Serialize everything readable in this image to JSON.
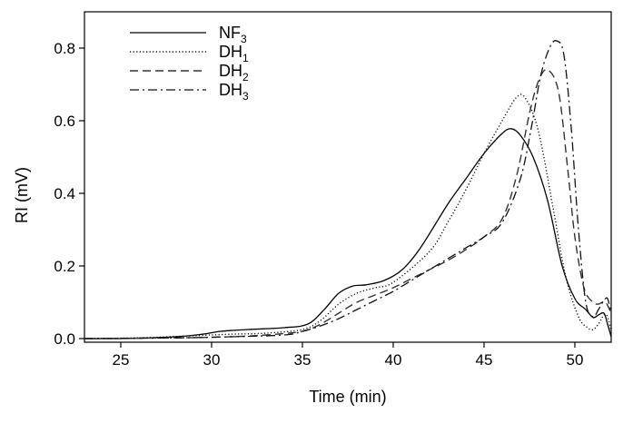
{
  "chart_data": {
    "type": "line",
    "xlabel": "Time (min)",
    "ylabel": "RI (mV)",
    "xlim": [
      23,
      52
    ],
    "ylim": [
      -0.01,
      0.9
    ],
    "xticks": [
      25,
      30,
      35,
      40,
      45,
      50
    ],
    "yticks": [
      0.0,
      0.2,
      0.4,
      0.6,
      0.8
    ],
    "xtick_labels": [
      "25",
      "30",
      "35",
      "40",
      "45",
      "50"
    ],
    "ytick_labels": [
      "0.0",
      "0.2",
      "0.4",
      "0.6",
      "0.8"
    ],
    "grid": false,
    "legend_position": "top-left",
    "series": [
      {
        "label_main": "NF",
        "label_sub": "3",
        "style": "solid",
        "x": [
          23,
          25,
          28,
          29.5,
          30.5,
          32,
          34,
          35.3,
          36.2,
          37,
          37.8,
          38.5,
          39.5,
          40.5,
          41.5,
          43,
          44,
          45,
          46,
          46.5,
          47,
          47.7,
          48.5,
          49.3,
          50,
          50.6,
          51,
          51.3,
          51.6,
          51.8,
          52
        ],
        "y": [
          0.0,
          0.0,
          0.005,
          0.012,
          0.02,
          0.025,
          0.03,
          0.04,
          0.08,
          0.125,
          0.145,
          0.148,
          0.16,
          0.19,
          0.25,
          0.37,
          0.44,
          0.51,
          0.565,
          0.578,
          0.56,
          0.5,
          0.38,
          0.2,
          0.11,
          0.08,
          0.058,
          0.065,
          0.07,
          0.04,
          0.005
        ]
      },
      {
        "label_main": "DH",
        "label_sub": "1",
        "style": "dotted",
        "x": [
          23,
          26,
          29,
          31,
          33,
          35,
          36,
          37,
          38,
          39,
          40,
          42,
          43,
          44,
          45,
          46,
          46.8,
          47.3,
          48,
          48.8,
          49.5,
          50.2,
          50.7,
          51,
          51.3,
          51.6,
          51.8,
          52
        ],
        "y": [
          0.0,
          0.002,
          0.008,
          0.012,
          0.015,
          0.025,
          0.05,
          0.095,
          0.125,
          0.14,
          0.155,
          0.24,
          0.32,
          0.41,
          0.51,
          0.6,
          0.665,
          0.66,
          0.57,
          0.36,
          0.17,
          0.06,
          0.03,
          0.025,
          0.04,
          0.065,
          0.06,
          0.02
        ]
      },
      {
        "label_main": "DH",
        "label_sub": "2",
        "style": "dashed",
        "x": [
          23,
          28,
          31,
          33,
          35,
          36,
          37,
          38,
          39,
          40,
          41,
          42,
          43,
          44,
          45,
          46,
          46.8,
          47.5,
          48,
          48.5,
          49.1,
          49.6,
          50,
          50.5,
          51,
          51.3,
          51.5,
          51.7,
          52
        ],
        "y": [
          0.0,
          0.002,
          0.005,
          0.01,
          0.02,
          0.04,
          0.07,
          0.1,
          0.12,
          0.14,
          0.165,
          0.19,
          0.215,
          0.245,
          0.28,
          0.33,
          0.45,
          0.62,
          0.71,
          0.74,
          0.68,
          0.47,
          0.28,
          0.14,
          0.1,
          0.095,
          0.1,
          0.1,
          0.07
        ]
      },
      {
        "label_main": "DH",
        "label_sub": "3",
        "style": "dashdot",
        "x": [
          23,
          28,
          31,
          34,
          35,
          36,
          37,
          38,
          39,
          40,
          41,
          42,
          43,
          44,
          45,
          46,
          47,
          47.6,
          48.1,
          48.6,
          49,
          49.4,
          49.8,
          50.2,
          50.6,
          51,
          51.3,
          51.6,
          51.8,
          52
        ],
        "y": [
          0.0,
          0.002,
          0.005,
          0.01,
          0.02,
          0.035,
          0.055,
          0.08,
          0.105,
          0.13,
          0.16,
          0.19,
          0.22,
          0.25,
          0.28,
          0.32,
          0.44,
          0.58,
          0.72,
          0.8,
          0.82,
          0.78,
          0.58,
          0.3,
          0.1,
          0.06,
          0.08,
          0.105,
          0.11,
          0.07
        ]
      }
    ]
  }
}
